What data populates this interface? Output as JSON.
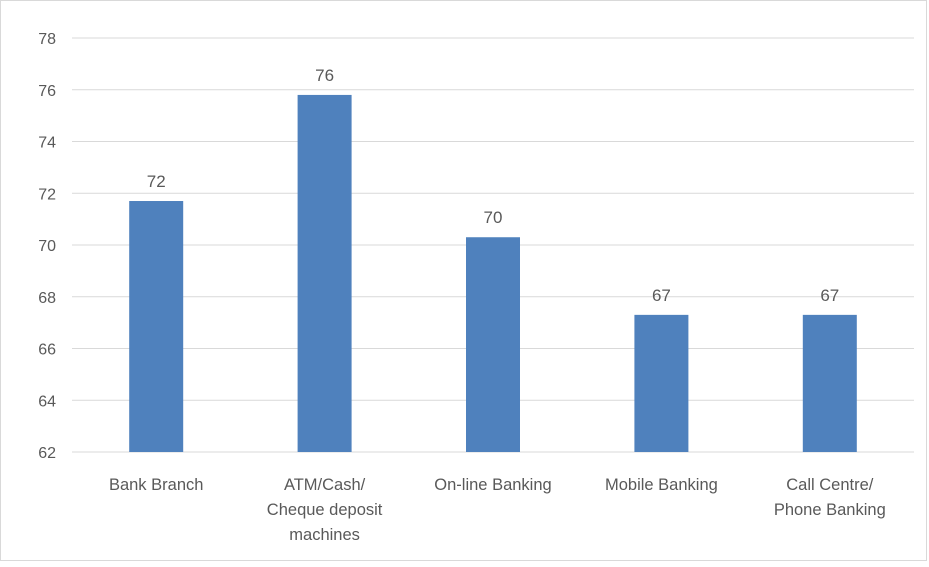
{
  "chart_data": {
    "type": "bar",
    "categories": [
      [
        "Bank Branch"
      ],
      [
        "ATM/Cash/",
        "Cheque deposit",
        "machines"
      ],
      [
        "On-line Banking"
      ],
      [
        "Mobile Banking"
      ],
      [
        "Call Centre/",
        "Phone Banking"
      ]
    ],
    "values": [
      71.7,
      75.8,
      70.3,
      67.3,
      67.3
    ],
    "data_labels": [
      "72",
      "76",
      "70",
      "67",
      "67"
    ],
    "ylim": [
      62,
      78
    ],
    "yticks": [
      62,
      64,
      66,
      68,
      70,
      72,
      74,
      76,
      78
    ],
    "grid": true,
    "bar_color": "#4f81bd",
    "grid_color": "#d9d9d9"
  }
}
